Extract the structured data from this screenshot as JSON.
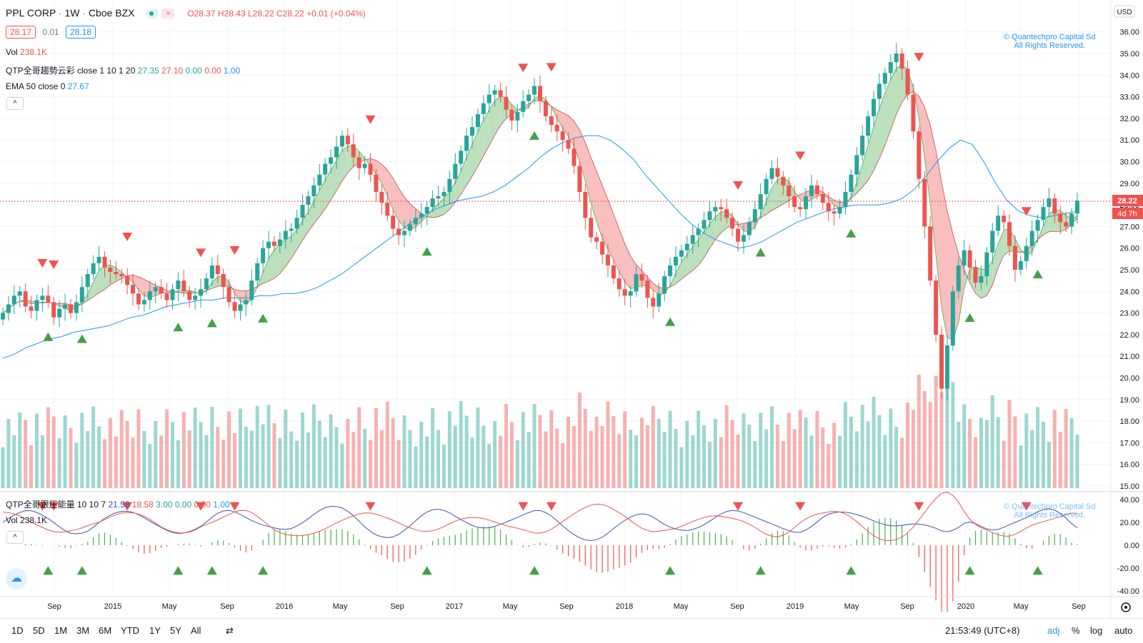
{
  "header": {
    "symbol": "PPL CORP",
    "interval": "1W",
    "exchange": "Cboe BZX",
    "ohlc": {
      "o": "O28.37",
      "h": "H28.43",
      "l": "L28.22",
      "c": "C28.22",
      "chg": "+0.01 (+0.04%)"
    },
    "bid": "28.17",
    "spread": "0.01",
    "ask": "28.18"
  },
  "legend": {
    "vol_label": "Vol",
    "vol_value": "238.1K",
    "qtp_cloud_label": "QTP全哥趨勢云彩 close 1 10 1 20",
    "qtp_cloud_values": [
      "27.35",
      "27.10",
      "0.00",
      "0.00",
      "1.00"
    ],
    "ema_label": "EMA 50 close 0",
    "ema_value": "27.67",
    "collapse_icon": "^"
  },
  "indicator_pane": {
    "label": "QTP全哥跟圧能量 10 10 7",
    "values": [
      "21.58",
      "18.58",
      "3.00",
      "0.00",
      "0.00",
      "1.00"
    ],
    "vol_label": "Vol",
    "vol_value": "238.1K",
    "collapse_icon": "^",
    "axis": [
      "40.00",
      "20.00",
      "0.00",
      "-20.00",
      "-40.00"
    ]
  },
  "watermark": {
    "line1": "© Quantechpro Capital Sd",
    "line2": "All Rights Reserved."
  },
  "price_axis": {
    "currency": "USD",
    "ticks": [
      "36.00",
      "35.00",
      "34.00",
      "33.00",
      "32.00",
      "31.00",
      "30.00",
      "29.00",
      "28.00",
      "27.00",
      "26.00",
      "25.00",
      "24.00",
      "23.00",
      "22.00",
      "21.00",
      "20.00",
      "19.00",
      "18.00",
      "17.00",
      "16.00",
      "15.00"
    ],
    "last_price": "28.22",
    "countdown": "4d 7h"
  },
  "time_axis": {
    "labels": [
      "Sep",
      "2015",
      "May",
      "Sep",
      "2016",
      "May",
      "Sep",
      "2017",
      "May",
      "Sep",
      "2018",
      "May",
      "Sep",
      "2019",
      "May",
      "Sep",
      "2020",
      "May",
      "Sep"
    ]
  },
  "bottom_bar": {
    "ranges": [
      "1D",
      "5D",
      "1M",
      "3M",
      "6M",
      "YTD",
      "1Y",
      "5Y",
      "All"
    ],
    "time": "21:53:49 (UTC+8)",
    "right_options": [
      "adj",
      "%",
      "log",
      "auto"
    ]
  },
  "colors": {
    "up": "#26a69a",
    "down": "#ef5350",
    "ema": "#2196f3",
    "cloud_up": "#a5d6a7",
    "cloud_down": "#f7a8a8"
  },
  "chart_data": {
    "type": "candlestick",
    "x_start": "2014-07",
    "x_end": "2020-09",
    "ylim": [
      15,
      36.5
    ],
    "closes": [
      23.0,
      23.4,
      23.8,
      24.0,
      23.3,
      23.1,
      23.6,
      23.8,
      23.5,
      22.8,
      23.2,
      23.4,
      23.0,
      23.5,
      24.2,
      24.8,
      25.3,
      25.6,
      25.1,
      24.9,
      24.8,
      24.7,
      24.3,
      23.9,
      23.4,
      23.6,
      24.0,
      24.2,
      23.9,
      23.6,
      24.1,
      24.5,
      24.0,
      23.6,
      23.8,
      24.1,
      24.6,
      25.2,
      24.8,
      24.2,
      23.5,
      23.1,
      23.4,
      23.6,
      24.5,
      25.3,
      26.0,
      26.3,
      26.1,
      26.4,
      26.8,
      26.9,
      27.4,
      28.0,
      28.4,
      28.9,
      29.4,
      29.9,
      30.2,
      30.7,
      31.2,
      30.8,
      30.2,
      29.7,
      29.9,
      29.4,
      28.6,
      28.1,
      27.5,
      26.9,
      26.6,
      26.8,
      27.1,
      27.4,
      27.6,
      27.9,
      28.3,
      28.4,
      28.6,
      29.2,
      29.9,
      30.5,
      31.2,
      31.6,
      32.2,
      32.7,
      33.1,
      33.3,
      33.0,
      32.4,
      31.9,
      32.3,
      32.8,
      33.1,
      33.5,
      32.8,
      32.1,
      31.7,
      31.4,
      31.0,
      30.6,
      29.8,
      28.6,
      27.4,
      26.5,
      26.3,
      25.7,
      25.2,
      24.6,
      24.1,
      23.8,
      24.0,
      24.8,
      24.5,
      23.7,
      23.3,
      23.9,
      24.7,
      25.2,
      25.6,
      25.9,
      26.2,
      26.6,
      26.9,
      27.3,
      27.7,
      27.9,
      27.8,
      27.4,
      26.9,
      26.3,
      26.6,
      27.2,
      27.8,
      28.5,
      29.2,
      29.7,
      29.3,
      28.9,
      28.4,
      27.9,
      27.8,
      28.4,
      28.9,
      28.5,
      28.1,
      27.7,
      27.6,
      27.9,
      28.6,
      29.4,
      30.3,
      31.2,
      32.1,
      32.9,
      33.6,
      34.1,
      34.6,
      35.0,
      34.3,
      33.1,
      31.4,
      29.2,
      27.0,
      24.5,
      22.0,
      19.5,
      21.5,
      24.0,
      25.2,
      25.9,
      25.1,
      24.4,
      24.7,
      25.8,
      26.8,
      27.5,
      27.2,
      26.1,
      25.0,
      25.4,
      26.1,
      26.8,
      27.3,
      27.9,
      28.3,
      27.6,
      27.2,
      27.0,
      27.6,
      28.2
    ],
    "ema50": [
      20.9,
      21.1,
      21.4,
      21.6,
      21.8,
      21.9,
      22.1,
      22.2,
      22.3,
      22.4,
      22.6,
      22.8,
      22.9,
      23.1,
      23.3,
      23.4,
      23.5,
      23.6,
      23.6,
      23.7,
      23.7,
      23.7,
      23.8,
      23.8,
      23.9,
      23.9,
      24.0,
      24.2,
      24.5,
      24.8,
      25.2,
      25.6,
      26.0,
      26.4,
      26.8,
      27.2,
      27.5,
      27.8,
      28.0,
      28.2,
      28.3,
      28.4,
      28.6,
      28.9,
      29.3,
      29.7,
      30.2,
      30.6,
      30.9,
      31.1,
      31.2,
      31.2,
      31.0,
      30.6,
      30.1,
      29.4,
      28.8,
      28.2,
      27.6,
      27.1,
      26.7,
      26.4,
      26.2,
      26.0,
      26.1,
      26.3,
      26.6,
      26.9,
      27.2,
      27.4,
      27.6,
      27.8,
      27.9,
      28.0,
      28.0,
      28.0,
      28.1,
      28.3,
      28.7,
      29.3,
      30.0,
      30.6,
      31.0,
      30.8,
      30.0,
      29.0,
      28.2,
      27.7,
      27.5,
      27.4,
      27.5,
      27.6,
      27.7
    ]
  }
}
